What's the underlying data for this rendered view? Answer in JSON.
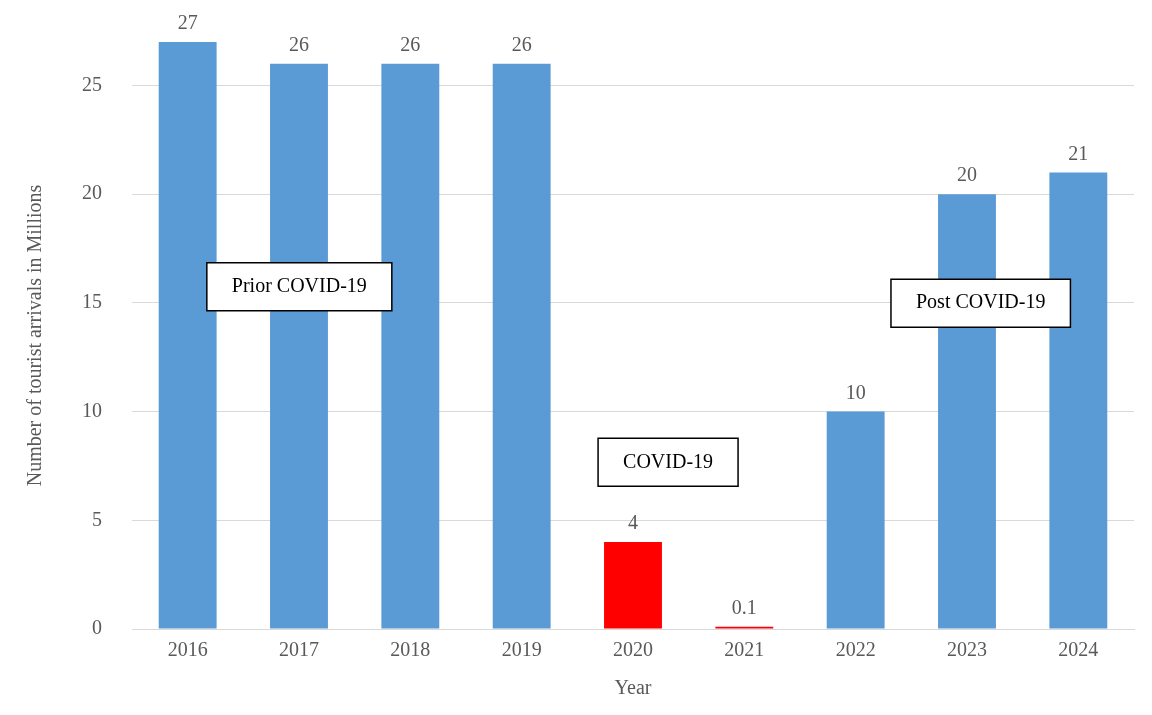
{
  "chart_data": {
    "type": "bar",
    "xlabel": "Year",
    "ylabel": "Number of tourist arrivals in Millions",
    "categories": [
      "2016",
      "2017",
      "2018",
      "2019",
      "2020",
      "2021",
      "2022",
      "2023",
      "2024"
    ],
    "values": [
      27,
      26,
      26,
      26,
      4,
      0.1,
      10,
      20,
      21
    ],
    "colors": [
      "#5b9bd5",
      "#5b9bd5",
      "#5b9bd5",
      "#5b9bd5",
      "#ff0000",
      "#ff0000",
      "#5b9bd5",
      "#5b9bd5",
      "#5b9bd5"
    ],
    "ylim": [
      0,
      27
    ],
    "yticks": [
      0,
      5,
      10,
      15,
      20,
      25
    ],
    "grid": "y",
    "legend": false,
    "data_labels": true,
    "annotations": [
      "Prior COVID-19",
      "COVID-19",
      "Post COVID-19"
    ]
  }
}
